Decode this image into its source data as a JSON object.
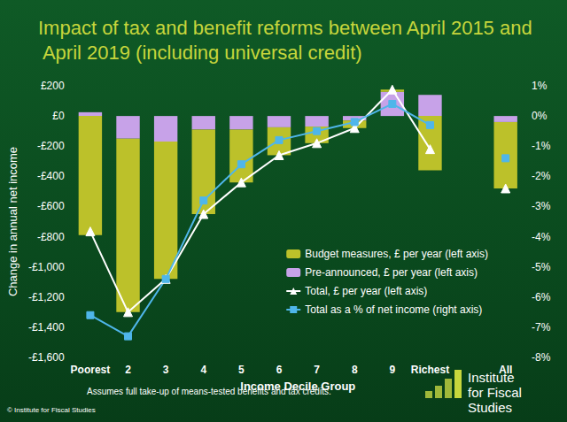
{
  "chart_data": {
    "type": "bar",
    "title": "Impact of tax and benefit reforms between April 2015 and April 2019 (including universal credit)",
    "x_label": "Income Decile Group",
    "y_label": "Change in annual net income",
    "categories": [
      "Poorest",
      "2",
      "3",
      "4",
      "5",
      "6",
      "7",
      "8",
      "9",
      "Richest",
      null,
      "All"
    ],
    "stacked": true,
    "grid": false,
    "legend": "lower right",
    "series": [
      {
        "name": "Budget measures, £ per year (left axis)",
        "type": "bar",
        "color": "#bcc12a",
        "values": [
          -790,
          -1150,
          -910,
          -560,
          -350,
          -185,
          -110,
          -50,
          15,
          -360,
          null,
          -440
        ]
      },
      {
        "name": "Pre-announced, £ per year (left axis)",
        "type": "bar",
        "color": "#c7a2e8",
        "values": [
          25,
          -150,
          -170,
          -90,
          -90,
          -75,
          -70,
          -30,
          160,
          140,
          null,
          -40
        ]
      },
      {
        "name": "Total, £ per year (left axis)",
        "type": "line",
        "color": "#ffffff",
        "marker": "triangle",
        "line_style": "solid",
        "values": [
          -765,
          -1300,
          -1080,
          -650,
          -440,
          -260,
          -180,
          -80,
          175,
          -220,
          null,
          -480
        ]
      },
      {
        "name": "Total as a % of net income (right axis)",
        "type": "line",
        "axis": "y2",
        "color": "#4fb6ea",
        "marker": "square",
        "line_style": "solid",
        "values": [
          -6.6,
          -7.3,
          -5.4,
          -2.8,
          -1.6,
          -0.8,
          -0.5,
          -0.2,
          0.4,
          -0.3,
          null,
          -1.4
        ]
      }
    ],
    "ylim": [
      -1600,
      200
    ],
    "yticks": [
      {
        "value": -1600,
        "label": "-£1,600"
      },
      {
        "value": -1400,
        "label": "-£1,400"
      },
      {
        "value": -1200,
        "label": "-£1,200"
      },
      {
        "value": -1000,
        "label": "-£1,000"
      },
      {
        "value": -800,
        "label": "-£800"
      },
      {
        "value": -600,
        "label": "-£600"
      },
      {
        "value": -400,
        "label": "-£400"
      },
      {
        "value": -200,
        "label": "-£200"
      },
      {
        "value": 0,
        "label": "£0"
      },
      {
        "value": 200,
        "label": "£200"
      }
    ],
    "y2lim": [
      -8,
      1
    ],
    "y2ticks": [
      {
        "value": -8,
        "label": "-8%"
      },
      {
        "value": -7,
        "label": "-7%"
      },
      {
        "value": -6,
        "label": "-6%"
      },
      {
        "value": -5,
        "label": "-5%"
      },
      {
        "value": -4,
        "label": "-4%"
      },
      {
        "value": -3,
        "label": "-3%"
      },
      {
        "value": -2,
        "label": "-2%"
      },
      {
        "value": -1,
        "label": "-1%"
      },
      {
        "value": 0,
        "label": "0%"
      },
      {
        "value": 1,
        "label": "1%"
      }
    ],
    "annotations": [
      "Assumes full take-up of means-tested benefits and tax credits.",
      "© Institute for Fiscal Studies",
      "Institute for Fiscal Studies"
    ]
  }
}
